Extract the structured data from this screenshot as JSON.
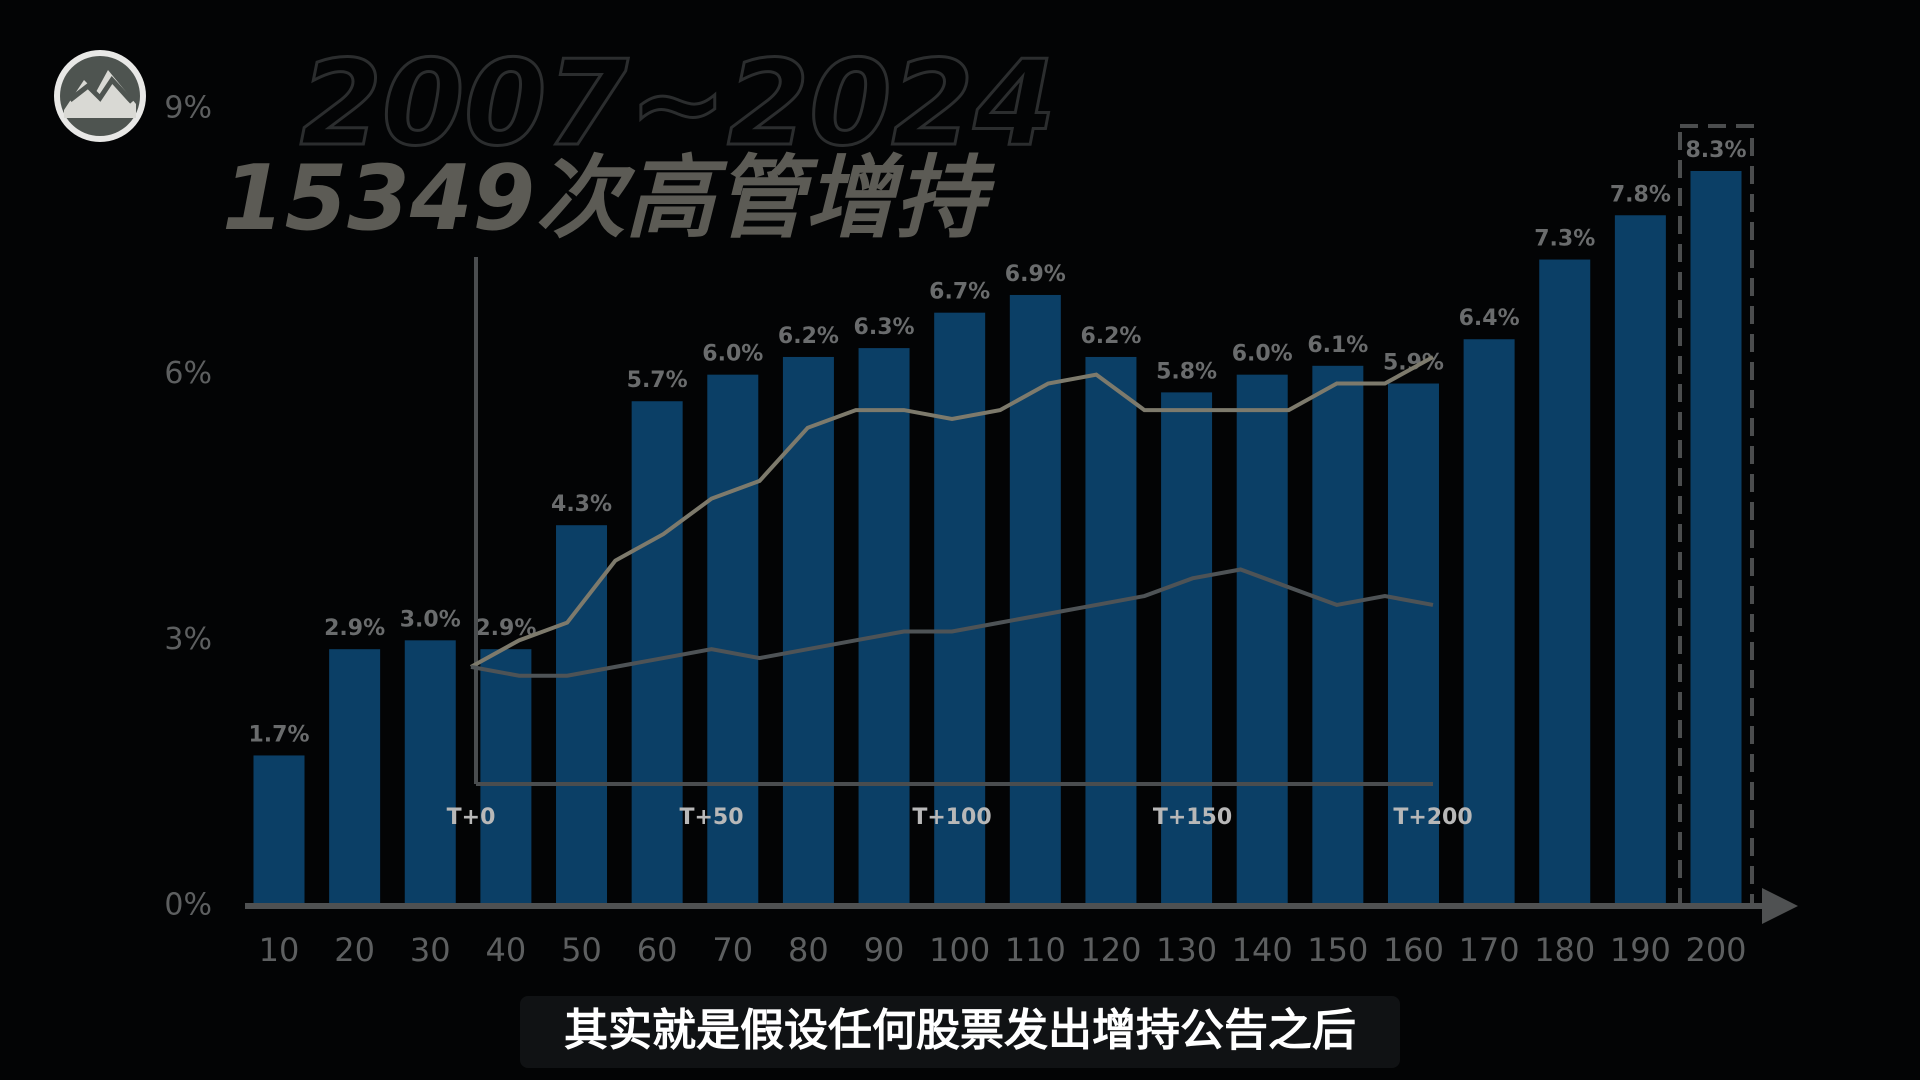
{
  "chart_data": [
    {
      "type": "bar",
      "title": "2007~2024",
      "subtitle": "15349次高管增持",
      "categories": [
        "10",
        "20",
        "30",
        "40",
        "50",
        "60",
        "70",
        "80",
        "90",
        "100",
        "110",
        "120",
        "130",
        "140",
        "150",
        "160",
        "170",
        "180",
        "190",
        "200"
      ],
      "values": [
        1.7,
        2.9,
        3.0,
        2.9,
        4.3,
        5.7,
        6.0,
        6.2,
        6.3,
        6.7,
        6.9,
        6.2,
        5.8,
        6.0,
        6.1,
        5.9,
        6.4,
        7.3,
        7.8,
        8.3
      ],
      "value_labels": [
        "1.7%",
        "2.9%",
        "3.0%",
        "2.9%",
        "4.3%",
        "5.7%",
        "6.0%",
        "6.2%",
        "6.3%",
        "6.7%",
        "6.9%",
        "6.2%",
        "5.8%",
        "6.0%",
        "6.1%",
        "5.9%",
        "6.4%",
        "7.3%",
        "7.8%",
        "8.3%"
      ],
      "color": "#0b3f66",
      "ylim": [
        0,
        9
      ],
      "yticks": [
        {
          "value": 0,
          "label": "0%"
        },
        {
          "value": 3,
          "label": "3%"
        },
        {
          "value": 6,
          "label": "6%"
        },
        {
          "value": 9,
          "label": "9%"
        }
      ]
    },
    {
      "type": "line",
      "x": [
        0,
        10,
        20,
        30,
        40,
        50,
        60,
        70,
        80,
        90,
        100,
        110,
        120,
        130,
        140,
        150,
        160,
        170,
        180,
        190,
        200
      ],
      "series": [
        {
          "color": "#7d7a6c",
          "values": [
            2.7,
            3.0,
            3.2,
            3.9,
            4.2,
            4.6,
            4.8,
            5.4,
            5.6,
            5.6,
            5.5,
            5.6,
            5.9,
            6.0,
            5.6,
            5.6,
            5.6,
            5.6,
            5.9,
            5.9,
            6.2
          ]
        },
        {
          "color": "#4e5356",
          "values": [
            2.7,
            2.6,
            2.6,
            2.7,
            2.8,
            2.9,
            2.8,
            2.9,
            3.0,
            3.1,
            3.1,
            3.2,
            3.3,
            3.4,
            3.5,
            3.7,
            3.8,
            3.6,
            3.4,
            3.5,
            3.4
          ]
        }
      ],
      "xlim": [
        0,
        200
      ],
      "xticks": [
        {
          "value": 0,
          "label": "T+0"
        },
        {
          "value": 50,
          "label": "T+50"
        },
        {
          "value": 100,
          "label": "T+100"
        },
        {
          "value": 150,
          "label": "T+150"
        },
        {
          "value": 200,
          "label": "T+200"
        }
      ]
    }
  ],
  "caption": "其实就是假设任何股票发出增持公告之后"
}
